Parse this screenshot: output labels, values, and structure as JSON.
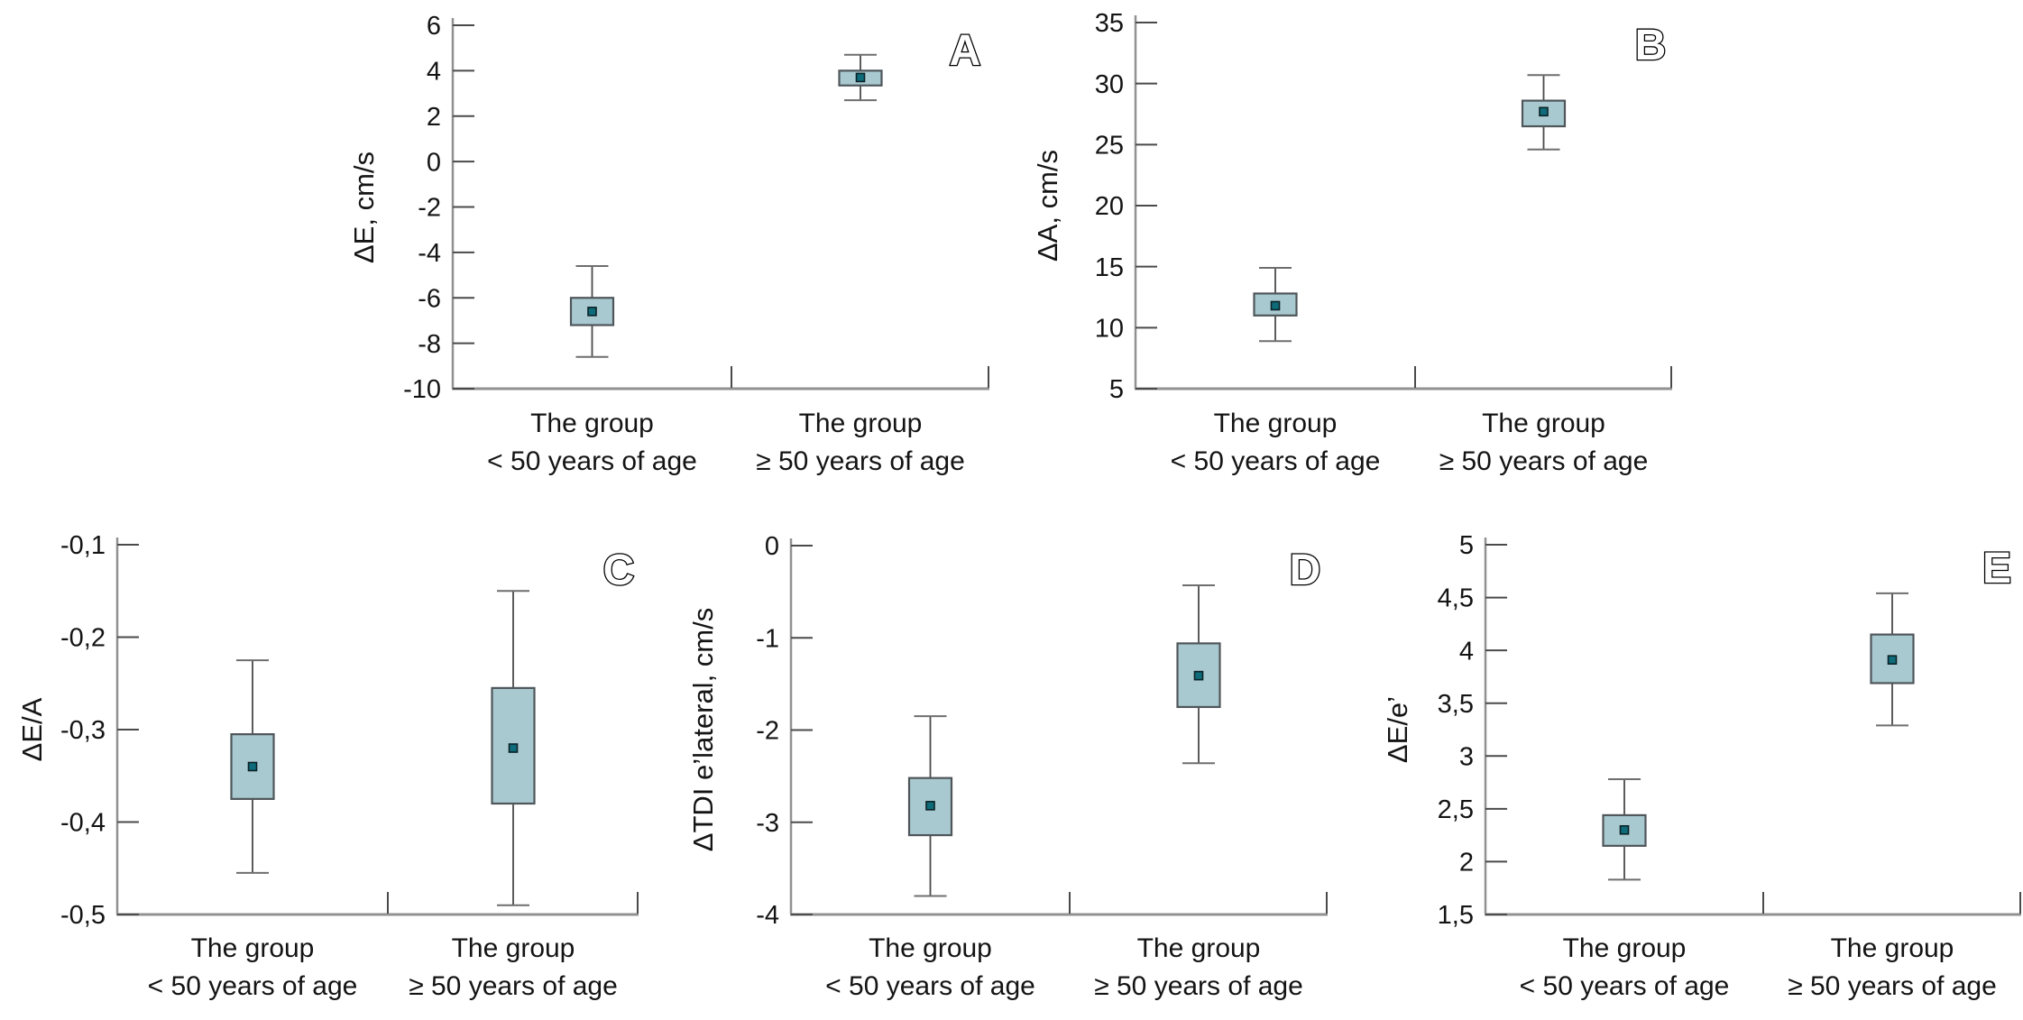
{
  "figure": {
    "categories": [
      {
        "line1": "The group",
        "line2": "< 50 years of age"
      },
      {
        "line1": "The group",
        "line2": "≥ 50 years of age"
      }
    ],
    "colors": {
      "box_fill": "#a9c9d0",
      "box_border": "#4f565a",
      "median_fill": "#0d6b7a",
      "median_border": "#0b2226",
      "whisker": "#4a4a4a",
      "cap": "#6e6e6e",
      "axis": "#919191",
      "tick": "#4a4a4a",
      "text": "#141414"
    }
  },
  "chart_data": [
    {
      "type": "box",
      "panel": "A",
      "ylabel": "ΔE, cm/s",
      "ylim": [
        -10,
        6
      ],
      "yticks": [
        {
          "value": 6,
          "label": "6"
        },
        {
          "value": 4,
          "label": "4"
        },
        {
          "value": 2,
          "label": "2"
        },
        {
          "value": 0,
          "label": "0"
        },
        {
          "value": -2,
          "label": "-2"
        },
        {
          "value": -4,
          "label": "-4"
        },
        {
          "value": -6,
          "label": "-6"
        },
        {
          "value": -8,
          "label": "-8"
        },
        {
          "value": -10,
          "label": "-10"
        }
      ],
      "groups": [
        {
          "category": "The group < 50 years of age",
          "whisker_low": -8.6,
          "q1": -7.2,
          "median": -6.6,
          "q3": -6.0,
          "whisker_high": -4.6
        },
        {
          "category": "The group ≥ 50 years of age",
          "whisker_low": 2.7,
          "q1": 3.35,
          "median": 3.7,
          "q3": 4.0,
          "whisker_high": 4.7
        }
      ]
    },
    {
      "type": "box",
      "panel": "B",
      "ylabel": "ΔA, cm/s",
      "ylim": [
        5,
        35
      ],
      "yticks": [
        {
          "value": 35,
          "label": "35"
        },
        {
          "value": 30,
          "label": "30"
        },
        {
          "value": 25,
          "label": "25"
        },
        {
          "value": 20,
          "label": "20"
        },
        {
          "value": 15,
          "label": "15"
        },
        {
          "value": 10,
          "label": "10"
        },
        {
          "value": 5,
          "label": "5"
        }
      ],
      "groups": [
        {
          "category": "The group < 50 years of age",
          "whisker_low": 8.9,
          "q1": 11.0,
          "median": 11.8,
          "q3": 12.8,
          "whisker_high": 14.9
        },
        {
          "category": "The group ≥ 50 years of age",
          "whisker_low": 24.6,
          "q1": 26.5,
          "median": 27.7,
          "q3": 28.6,
          "whisker_high": 30.7
        }
      ]
    },
    {
      "type": "box",
      "panel": "C",
      "ylabel": "ΔE/A",
      "ylim": [
        -0.5,
        -0.1
      ],
      "yticks": [
        {
          "value": -0.1,
          "label": "-0,1"
        },
        {
          "value": -0.2,
          "label": "-0,2"
        },
        {
          "value": -0.3,
          "label": "-0,3"
        },
        {
          "value": -0.4,
          "label": "-0,4"
        },
        {
          "value": -0.5,
          "label": "-0,5"
        }
      ],
      "groups": [
        {
          "category": "The group < 50 years of age",
          "whisker_low": -0.455,
          "q1": -0.375,
          "median": -0.34,
          "q3": -0.305,
          "whisker_high": -0.225
        },
        {
          "category": "The group ≥ 50 years of age",
          "whisker_low": -0.49,
          "q1": -0.38,
          "median": -0.32,
          "q3": -0.255,
          "whisker_high": -0.15
        }
      ]
    },
    {
      "type": "box",
      "panel": "D",
      "ylabel": "ΔTDI e’lateral, cm/s",
      "ylim": [
        -4,
        0
      ],
      "yticks": [
        {
          "value": 0,
          "label": "0"
        },
        {
          "value": -1,
          "label": "-1"
        },
        {
          "value": -2,
          "label": "-2"
        },
        {
          "value": -3,
          "label": "-3"
        },
        {
          "value": -4,
          "label": "-4"
        }
      ],
      "groups": [
        {
          "category": "The group < 50 years of age",
          "whisker_low": -3.8,
          "q1": -3.14,
          "median": -2.82,
          "q3": -2.52,
          "whisker_high": -1.85
        },
        {
          "category": "The group ≥ 50 years of age",
          "whisker_low": -2.36,
          "q1": -1.75,
          "median": -1.41,
          "q3": -1.06,
          "whisker_high": -0.43
        }
      ]
    },
    {
      "type": "box",
      "panel": "E",
      "ylabel": "ΔE/e’",
      "ylim": [
        1.5,
        5
      ],
      "yticks": [
        {
          "value": 5,
          "label": "5"
        },
        {
          "value": 4.5,
          "label": "4,5"
        },
        {
          "value": 4,
          "label": "4"
        },
        {
          "value": 3.5,
          "label": "3,5"
        },
        {
          "value": 3,
          "label": "3"
        },
        {
          "value": 2.5,
          "label": "2,5"
        },
        {
          "value": 2,
          "label": "2"
        },
        {
          "value": 1.5,
          "label": "1,5"
        }
      ],
      "groups": [
        {
          "category": "The group < 50 years of age",
          "whisker_low": 1.83,
          "q1": 2.15,
          "median": 2.3,
          "q3": 2.44,
          "whisker_high": 2.78
        },
        {
          "category": "The group ≥ 50 years of age",
          "whisker_low": 3.29,
          "q1": 3.69,
          "median": 3.91,
          "q3": 4.15,
          "whisker_high": 4.54
        }
      ]
    }
  ]
}
